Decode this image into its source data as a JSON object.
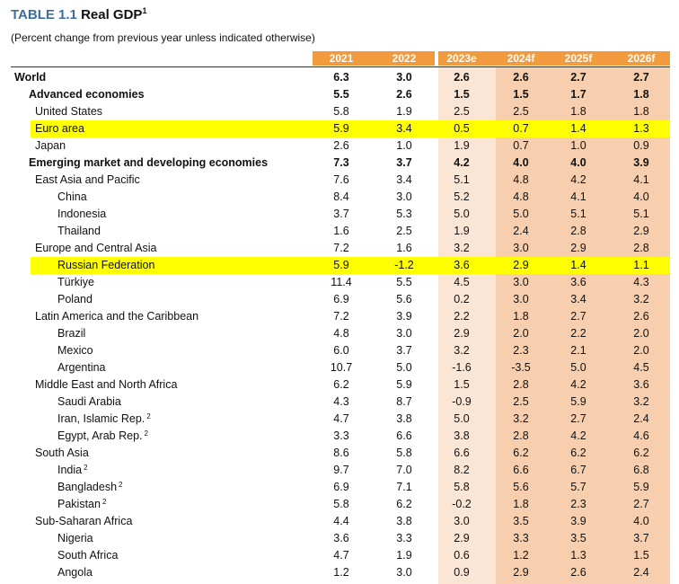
{
  "title": {
    "number": "TABLE 1.1",
    "text": "Real GDP",
    "sup": "1"
  },
  "subtitle": "(Percent change from previous year unless indicated otherwise)",
  "colors": {
    "title_blue": "#3d6d9e",
    "header_orange": "#f19a3e",
    "estimate_bg": "#fbe6d6",
    "forecast_bg": "#f7cfae",
    "highlight": "#ffff00"
  },
  "columns": [
    "2021",
    "2022",
    "2023e",
    "2024f",
    "2025f",
    "2026f"
  ],
  "rows": [
    {
      "label": "World",
      "sup": "",
      "values": [
        "6.3",
        "3.0",
        "2.6",
        "2.6",
        "2.7",
        "2.7"
      ]
    },
    {
      "label": "Advanced economies",
      "sup": "",
      "values": [
        "5.5",
        "2.6",
        "1.5",
        "1.5",
        "1.7",
        "1.8"
      ]
    },
    {
      "label": "United States",
      "sup": "",
      "values": [
        "5.8",
        "1.9",
        "2.5",
        "2.5",
        "1.8",
        "1.8"
      ]
    },
    {
      "label": "Euro area",
      "sup": "",
      "values": [
        "5.9",
        "3.4",
        "0.5",
        "0.7",
        "1.4",
        "1.3"
      ]
    },
    {
      "label": "Japan",
      "sup": "",
      "values": [
        "2.6",
        "1.0",
        "1.9",
        "0.7",
        "1.0",
        "0.9"
      ]
    },
    {
      "label": "Emerging market and developing economies",
      "sup": "",
      "values": [
        "7.3",
        "3.7",
        "4.2",
        "4.0",
        "4.0",
        "3.9"
      ]
    },
    {
      "label": "East Asia and Pacific",
      "sup": "",
      "values": [
        "7.6",
        "3.4",
        "5.1",
        "4.8",
        "4.2",
        "4.1"
      ]
    },
    {
      "label": "China",
      "sup": "",
      "values": [
        "8.4",
        "3.0",
        "5.2",
        "4.8",
        "4.1",
        "4.0"
      ]
    },
    {
      "label": "Indonesia",
      "sup": "",
      "values": [
        "3.7",
        "5.3",
        "5.0",
        "5.0",
        "5.1",
        "5.1"
      ]
    },
    {
      "label": "Thailand",
      "sup": "",
      "values": [
        "1.6",
        "2.5",
        "1.9",
        "2.4",
        "2.8",
        "2.9"
      ]
    },
    {
      "label": "Europe and Central Asia",
      "sup": "",
      "values": [
        "7.2",
        "1.6",
        "3.2",
        "3.0",
        "2.9",
        "2.8"
      ]
    },
    {
      "label": "Russian Federation",
      "sup": "",
      "values": [
        "5.9",
        "-1.2",
        "3.6",
        "2.9",
        "1.4",
        "1.1"
      ]
    },
    {
      "label": "Türkiye",
      "sup": "",
      "values": [
        "11.4",
        "5.5",
        "4.5",
        "3.0",
        "3.6",
        "4.3"
      ]
    },
    {
      "label": "Poland",
      "sup": "",
      "values": [
        "6.9",
        "5.6",
        "0.2",
        "3.0",
        "3.4",
        "3.2"
      ]
    },
    {
      "label": "Latin America and the Caribbean",
      "sup": "",
      "values": [
        "7.2",
        "3.9",
        "2.2",
        "1.8",
        "2.7",
        "2.6"
      ]
    },
    {
      "label": "Brazil",
      "sup": "",
      "values": [
        "4.8",
        "3.0",
        "2.9",
        "2.0",
        "2.2",
        "2.0"
      ]
    },
    {
      "label": "Mexico",
      "sup": "",
      "values": [
        "6.0",
        "3.7",
        "3.2",
        "2.3",
        "2.1",
        "2.0"
      ]
    },
    {
      "label": "Argentina",
      "sup": "",
      "values": [
        "10.7",
        "5.0",
        "-1.6",
        "-3.5",
        "5.0",
        "4.5"
      ]
    },
    {
      "label": "Middle East and North Africa",
      "sup": "",
      "values": [
        "6.2",
        "5.9",
        "1.5",
        "2.8",
        "4.2",
        "3.6"
      ]
    },
    {
      "label": "Saudi Arabia",
      "sup": "",
      "values": [
        "4.3",
        "8.7",
        "-0.9",
        "2.5",
        "5.9",
        "3.2"
      ]
    },
    {
      "label": "Iran, Islamic Rep.",
      "sup": "2",
      "values": [
        "4.7",
        "3.8",
        "5.0",
        "3.2",
        "2.7",
        "2.4"
      ]
    },
    {
      "label": "Egypt, Arab Rep.",
      "sup": "2",
      "values": [
        "3.3",
        "6.6",
        "3.8",
        "2.8",
        "4.2",
        "4.6"
      ]
    },
    {
      "label": "South Asia",
      "sup": "",
      "values": [
        "8.6",
        "5.8",
        "6.6",
        "6.2",
        "6.2",
        "6.2"
      ]
    },
    {
      "label": "India",
      "sup": "2",
      "values": [
        "9.7",
        "7.0",
        "8.2",
        "6.6",
        "6.7",
        "6.8"
      ]
    },
    {
      "label": "Bangladesh",
      "sup": "2",
      "values": [
        "6.9",
        "7.1",
        "5.8",
        "5.6",
        "5.7",
        "5.9"
      ]
    },
    {
      "label": "Pakistan",
      "sup": "2",
      "values": [
        "5.8",
        "6.2",
        "-0.2",
        "1.8",
        "2.3",
        "2.7"
      ]
    },
    {
      "label": "Sub-Saharan Africa",
      "sup": "",
      "values": [
        "4.4",
        "3.8",
        "3.0",
        "3.5",
        "3.9",
        "4.0"
      ]
    },
    {
      "label": "Nigeria",
      "sup": "",
      "values": [
        "3.6",
        "3.3",
        "2.9",
        "3.3",
        "3.5",
        "3.7"
      ]
    },
    {
      "label": "South Africa",
      "sup": "",
      "values": [
        "4.7",
        "1.9",
        "0.6",
        "1.2",
        "1.3",
        "1.5"
      ]
    },
    {
      "label": "Angola",
      "sup": "",
      "values": [
        "1.2",
        "3.0",
        "0.9",
        "2.9",
        "2.6",
        "2.4"
      ]
    }
  ]
}
